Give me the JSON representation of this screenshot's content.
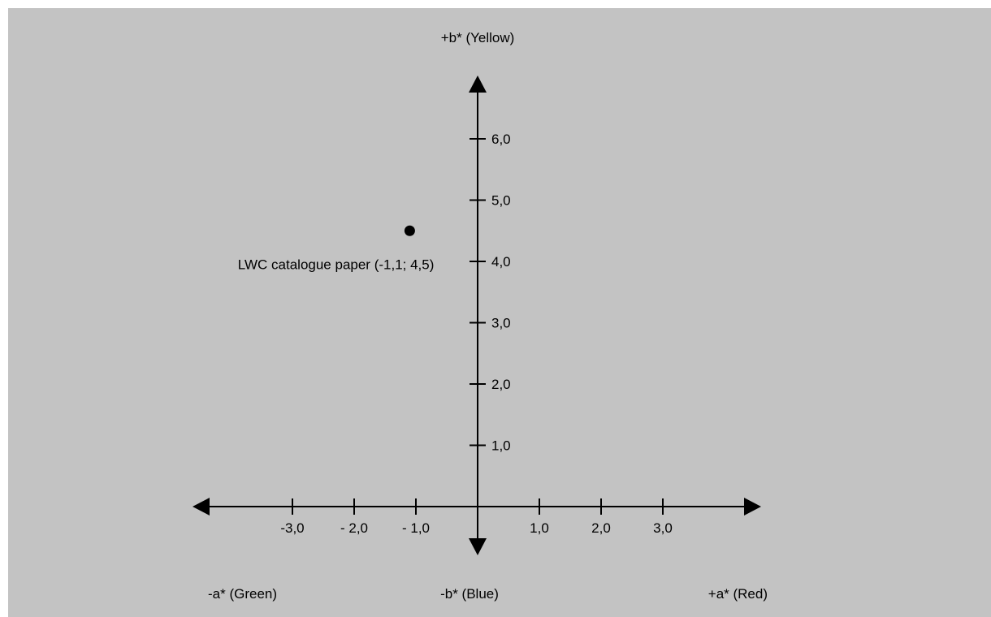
{
  "chart_data": {
    "type": "scatter",
    "axes": {
      "x_positive_label": "+a* (Red)",
      "x_negative_label": "-a* (Green)",
      "y_positive_label": "+b* (Yellow)",
      "y_negative_label": "-b* (Blue)"
    },
    "x_ticks": [
      {
        "value": -3,
        "label": "-3,0"
      },
      {
        "value": -2,
        "label": "- 2,0"
      },
      {
        "value": -1,
        "label": "- 1,0"
      },
      {
        "value": 1,
        "label": "1,0"
      },
      {
        "value": 2,
        "label": "2,0"
      },
      {
        "value": 3,
        "label": "3,0"
      }
    ],
    "y_ticks": [
      {
        "value": 1,
        "label": "1,0"
      },
      {
        "value": 2,
        "label": "2,0"
      },
      {
        "value": 3,
        "label": "3,0"
      },
      {
        "value": 4,
        "label": "4,0"
      },
      {
        "value": 5,
        "label": "5,0"
      },
      {
        "value": 6,
        "label": "6,0"
      }
    ],
    "points": [
      {
        "x": -1.1,
        "y": 4.5,
        "label": "LWC catalogue paper (-1,1; 4,5)"
      }
    ],
    "xlim": [
      -4.5,
      4.5
    ],
    "ylim": [
      -0.8,
      7
    ],
    "grid": false,
    "colors": {
      "background": "#c3c3c3",
      "ink": "#000000"
    }
  }
}
